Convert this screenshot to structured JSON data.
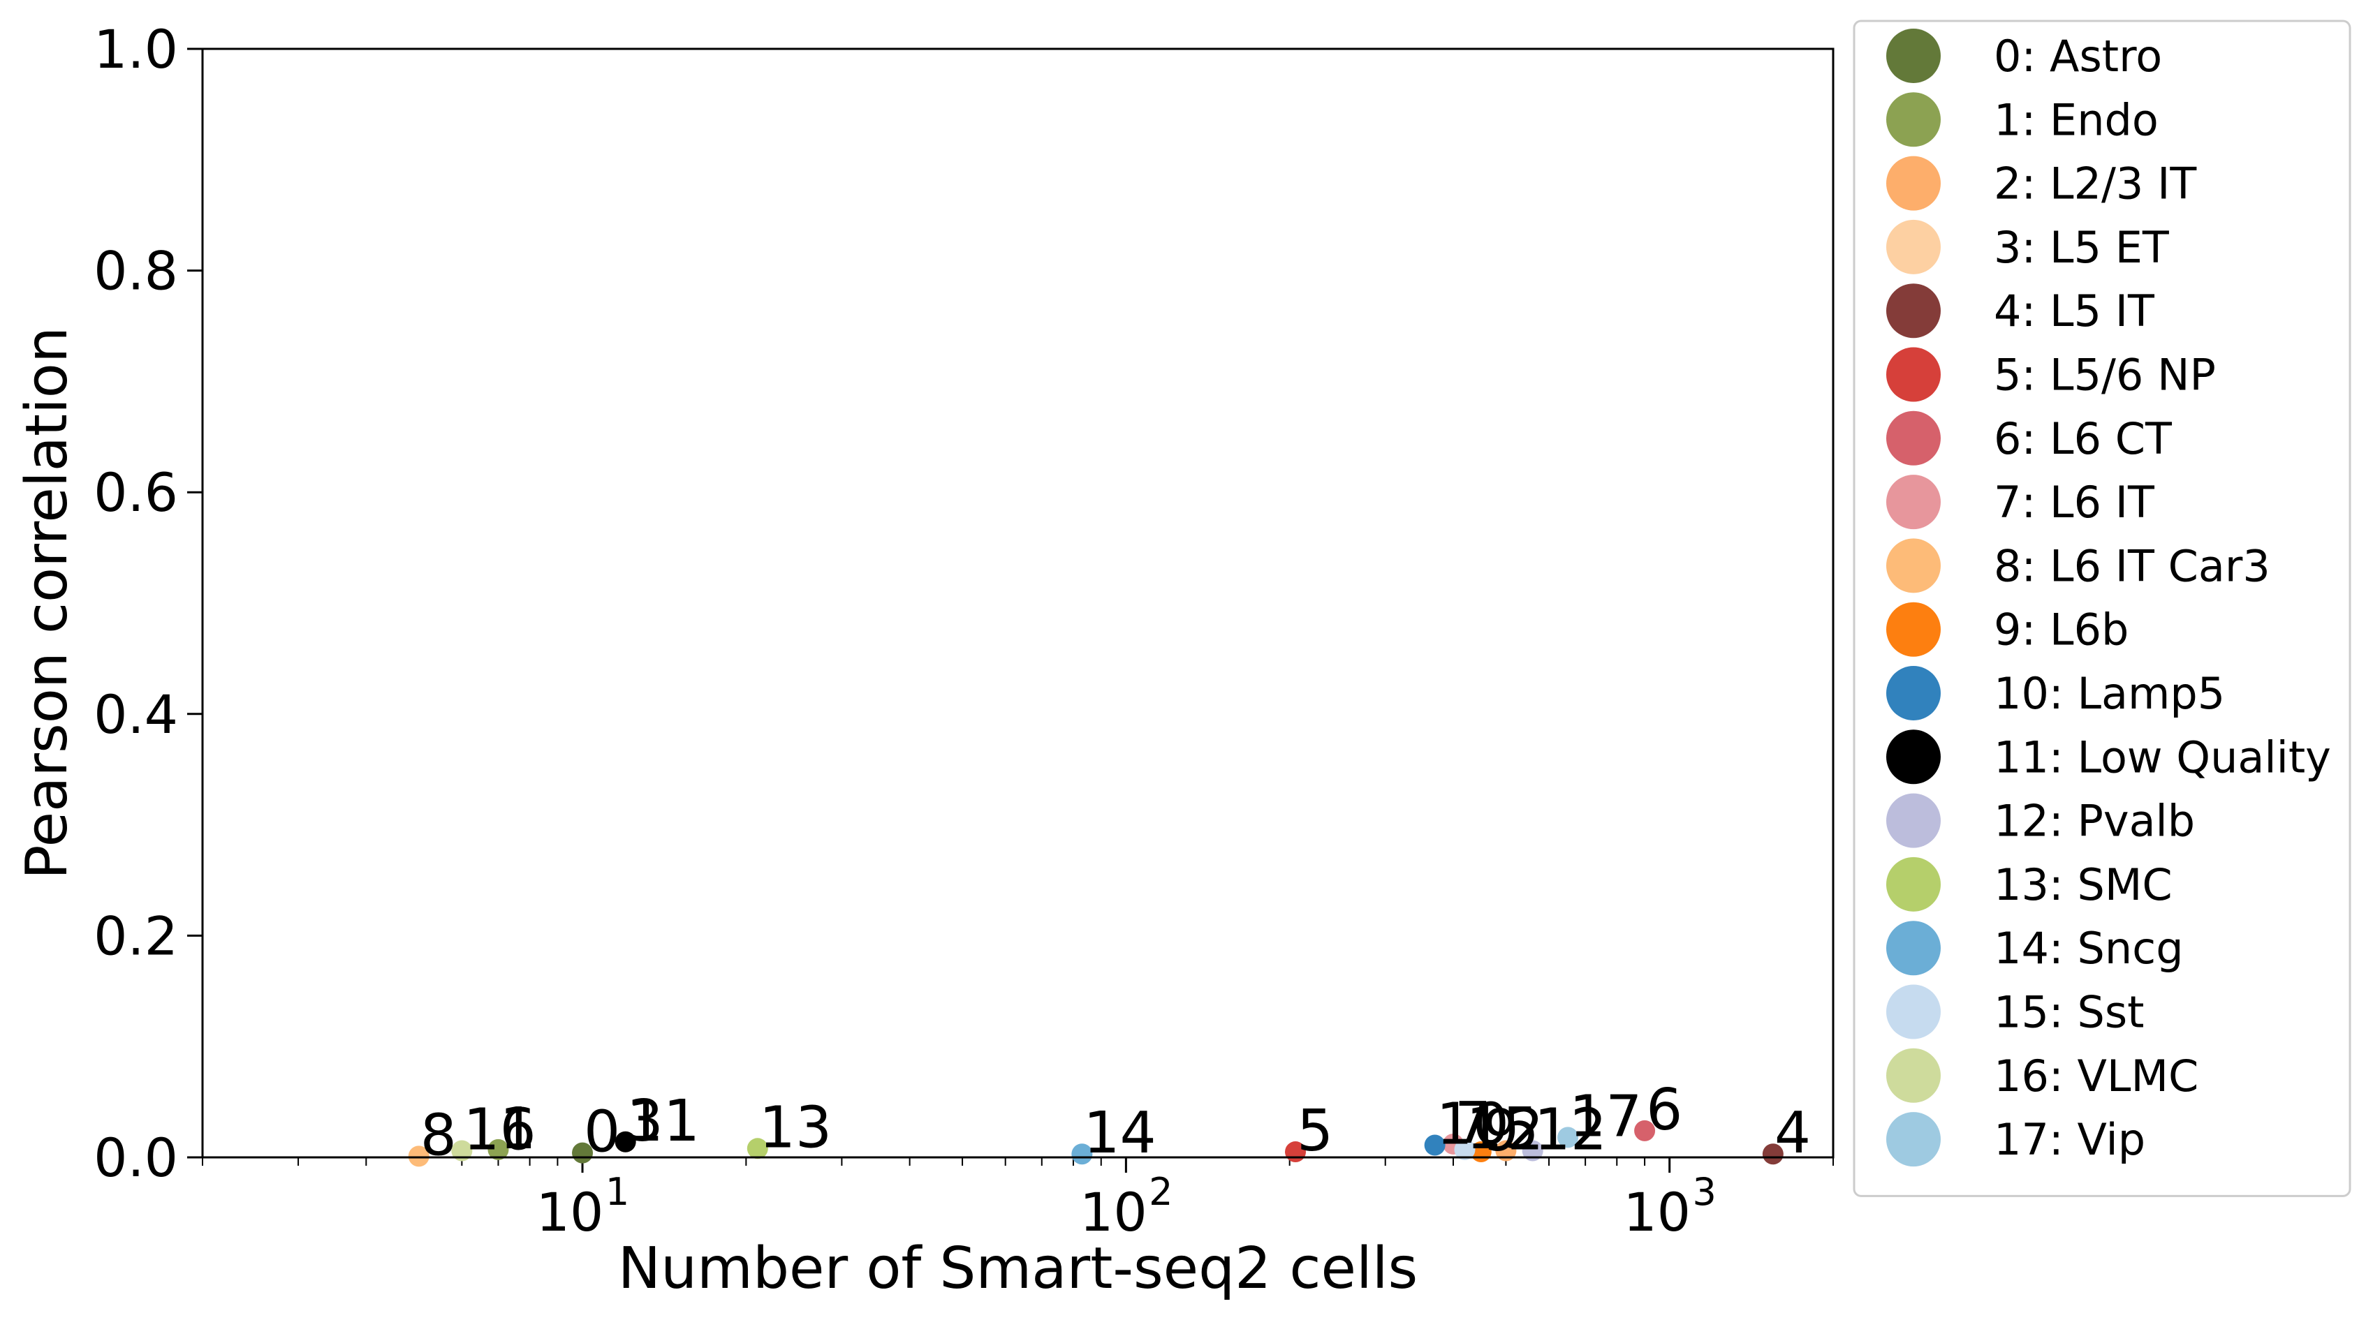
{
  "chart_data": {
    "type": "scatter",
    "xlabel": "Number of Smart-seq2 cells",
    "ylabel": "Pearson correlation",
    "xscale": "log",
    "xlim": [
      2,
      2000
    ],
    "ylim": [
      0.0,
      1.0
    ],
    "x_ticks": [
      {
        "value": 10,
        "label": "10",
        "exp": "1"
      },
      {
        "value": 100,
        "label": "10",
        "exp": "2"
      },
      {
        "value": 1000,
        "label": "10",
        "exp": "3"
      }
    ],
    "y_ticks": [
      {
        "value": 0.0,
        "label": "0.0"
      },
      {
        "value": 0.2,
        "label": "0.2"
      },
      {
        "value": 0.4,
        "label": "0.4"
      },
      {
        "value": 0.6,
        "label": "0.6"
      },
      {
        "value": 0.8,
        "label": "0.8"
      },
      {
        "value": 1.0,
        "label": "1.0"
      }
    ],
    "grid": false,
    "legend_position": "outside-right",
    "points": [
      {
        "id": "0",
        "name": "0: Astro",
        "x": 10,
        "y": 0.004,
        "color": "#637939"
      },
      {
        "id": "1",
        "name": "1: Endo",
        "x": 7,
        "y": 0.007,
        "color": "#8ca252"
      },
      {
        "id": "2",
        "name": "2: L2/3 IT",
        "x": 500,
        "y": 0.006,
        "color": "#fdae6b"
      },
      {
        "id": "3",
        "name": "3: L5 ET",
        "x": 12,
        "y": 0.014,
        "color": "#fdd0a2"
      },
      {
        "id": "4",
        "name": "4: L5 IT",
        "x": 1550,
        "y": 0.003,
        "color": "#843c39"
      },
      {
        "id": "5",
        "name": "5: L5/6 NP",
        "x": 205,
        "y": 0.005,
        "color": "#d6403a"
      },
      {
        "id": "6",
        "name": "6: L6 CT",
        "x": 900,
        "y": 0.024,
        "color": "#d6616b"
      },
      {
        "id": "7",
        "name": "7: L6 IT",
        "x": 400,
        "y": 0.012,
        "color": "#e7969c"
      },
      {
        "id": "8",
        "name": "8: L6 IT Car3",
        "x": 5,
        "y": 0.001,
        "color": "#fdbb78"
      },
      {
        "id": "9",
        "name": "9: L6b",
        "x": 450,
        "y": 0.005,
        "color": "#fd7f10"
      },
      {
        "id": "10",
        "name": "10: Lamp5",
        "x": 370,
        "y": 0.011,
        "color": "#3182bd"
      },
      {
        "id": "11",
        "name": "11: Low Quality",
        "x": 12,
        "y": 0.014,
        "color": "#000000"
      },
      {
        "id": "12",
        "name": "12: Pvalb",
        "x": 560,
        "y": 0.006,
        "color": "#bcbddc"
      },
      {
        "id": "13",
        "name": "13: SMC",
        "x": 21,
        "y": 0.008,
        "color": "#b5cf6b"
      },
      {
        "id": "14",
        "name": "14: Sncg",
        "x": 83,
        "y": 0.003,
        "color": "#6baed6"
      },
      {
        "id": "15",
        "name": "15: Sst",
        "x": 420,
        "y": 0.007,
        "color": "#c6dbef"
      },
      {
        "id": "16",
        "name": "16: VLMC",
        "x": 6,
        "y": 0.006,
        "color": "#cedb9c"
      },
      {
        "id": "17",
        "name": "17: Vip",
        "x": 650,
        "y": 0.018,
        "color": "#9ecae1"
      }
    ]
  }
}
